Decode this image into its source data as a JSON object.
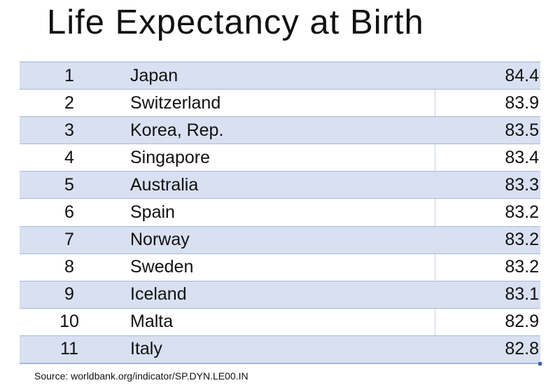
{
  "title": "Life Expectancy at Birth",
  "table": {
    "rows": [
      {
        "rank": "1",
        "country": "Japan",
        "value": "84.4"
      },
      {
        "rank": "2",
        "country": "Switzerland",
        "value": "83.9"
      },
      {
        "rank": "3",
        "country": "Korea, Rep.",
        "value": "83.5"
      },
      {
        "rank": "4",
        "country": "Singapore",
        "value": "83.4"
      },
      {
        "rank": "5",
        "country": "Australia",
        "value": "83.3"
      },
      {
        "rank": "6",
        "country": "Spain",
        "value": "83.2"
      },
      {
        "rank": "7",
        "country": "Norway",
        "value": "83.2"
      },
      {
        "rank": "8",
        "country": "Sweden",
        "value": "83.2"
      },
      {
        "rank": "9",
        "country": "Iceland",
        "value": "83.1"
      },
      {
        "rank": "10",
        "country": "Malta",
        "value": "82.9"
      },
      {
        "rank": "11",
        "country": "Italy",
        "value": "82.8"
      }
    ]
  },
  "source": "Source: worldbank.org/indicator/SP.DYN.LE00.IN",
  "colors": {
    "row_shade": "#d8e0f1",
    "grid_line": "#a9b8d8",
    "selection_handle": "#3d5fb4"
  }
}
